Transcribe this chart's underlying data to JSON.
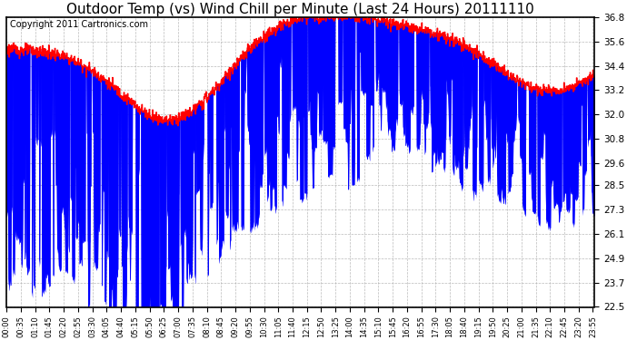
{
  "title": "Outdoor Temp (vs) Wind Chill per Minute (Last 24 Hours) 20111110",
  "copyright_text": "Copyright 2011 Cartronics.com",
  "y_min": 22.5,
  "y_max": 36.8,
  "y_ticks": [
    22.5,
    23.7,
    24.9,
    26.1,
    27.3,
    28.5,
    29.6,
    30.8,
    32.0,
    33.2,
    34.4,
    35.6,
    36.8
  ],
  "background_color": "#ffffff",
  "plot_bg_color": "#ffffff",
  "blue_color": "#0000ff",
  "red_color": "#ff0000",
  "grid_color": "#aaaaaa",
  "title_fontsize": 11,
  "copyright_fontsize": 7,
  "x_tick_step": 35,
  "n_minutes": 1440
}
